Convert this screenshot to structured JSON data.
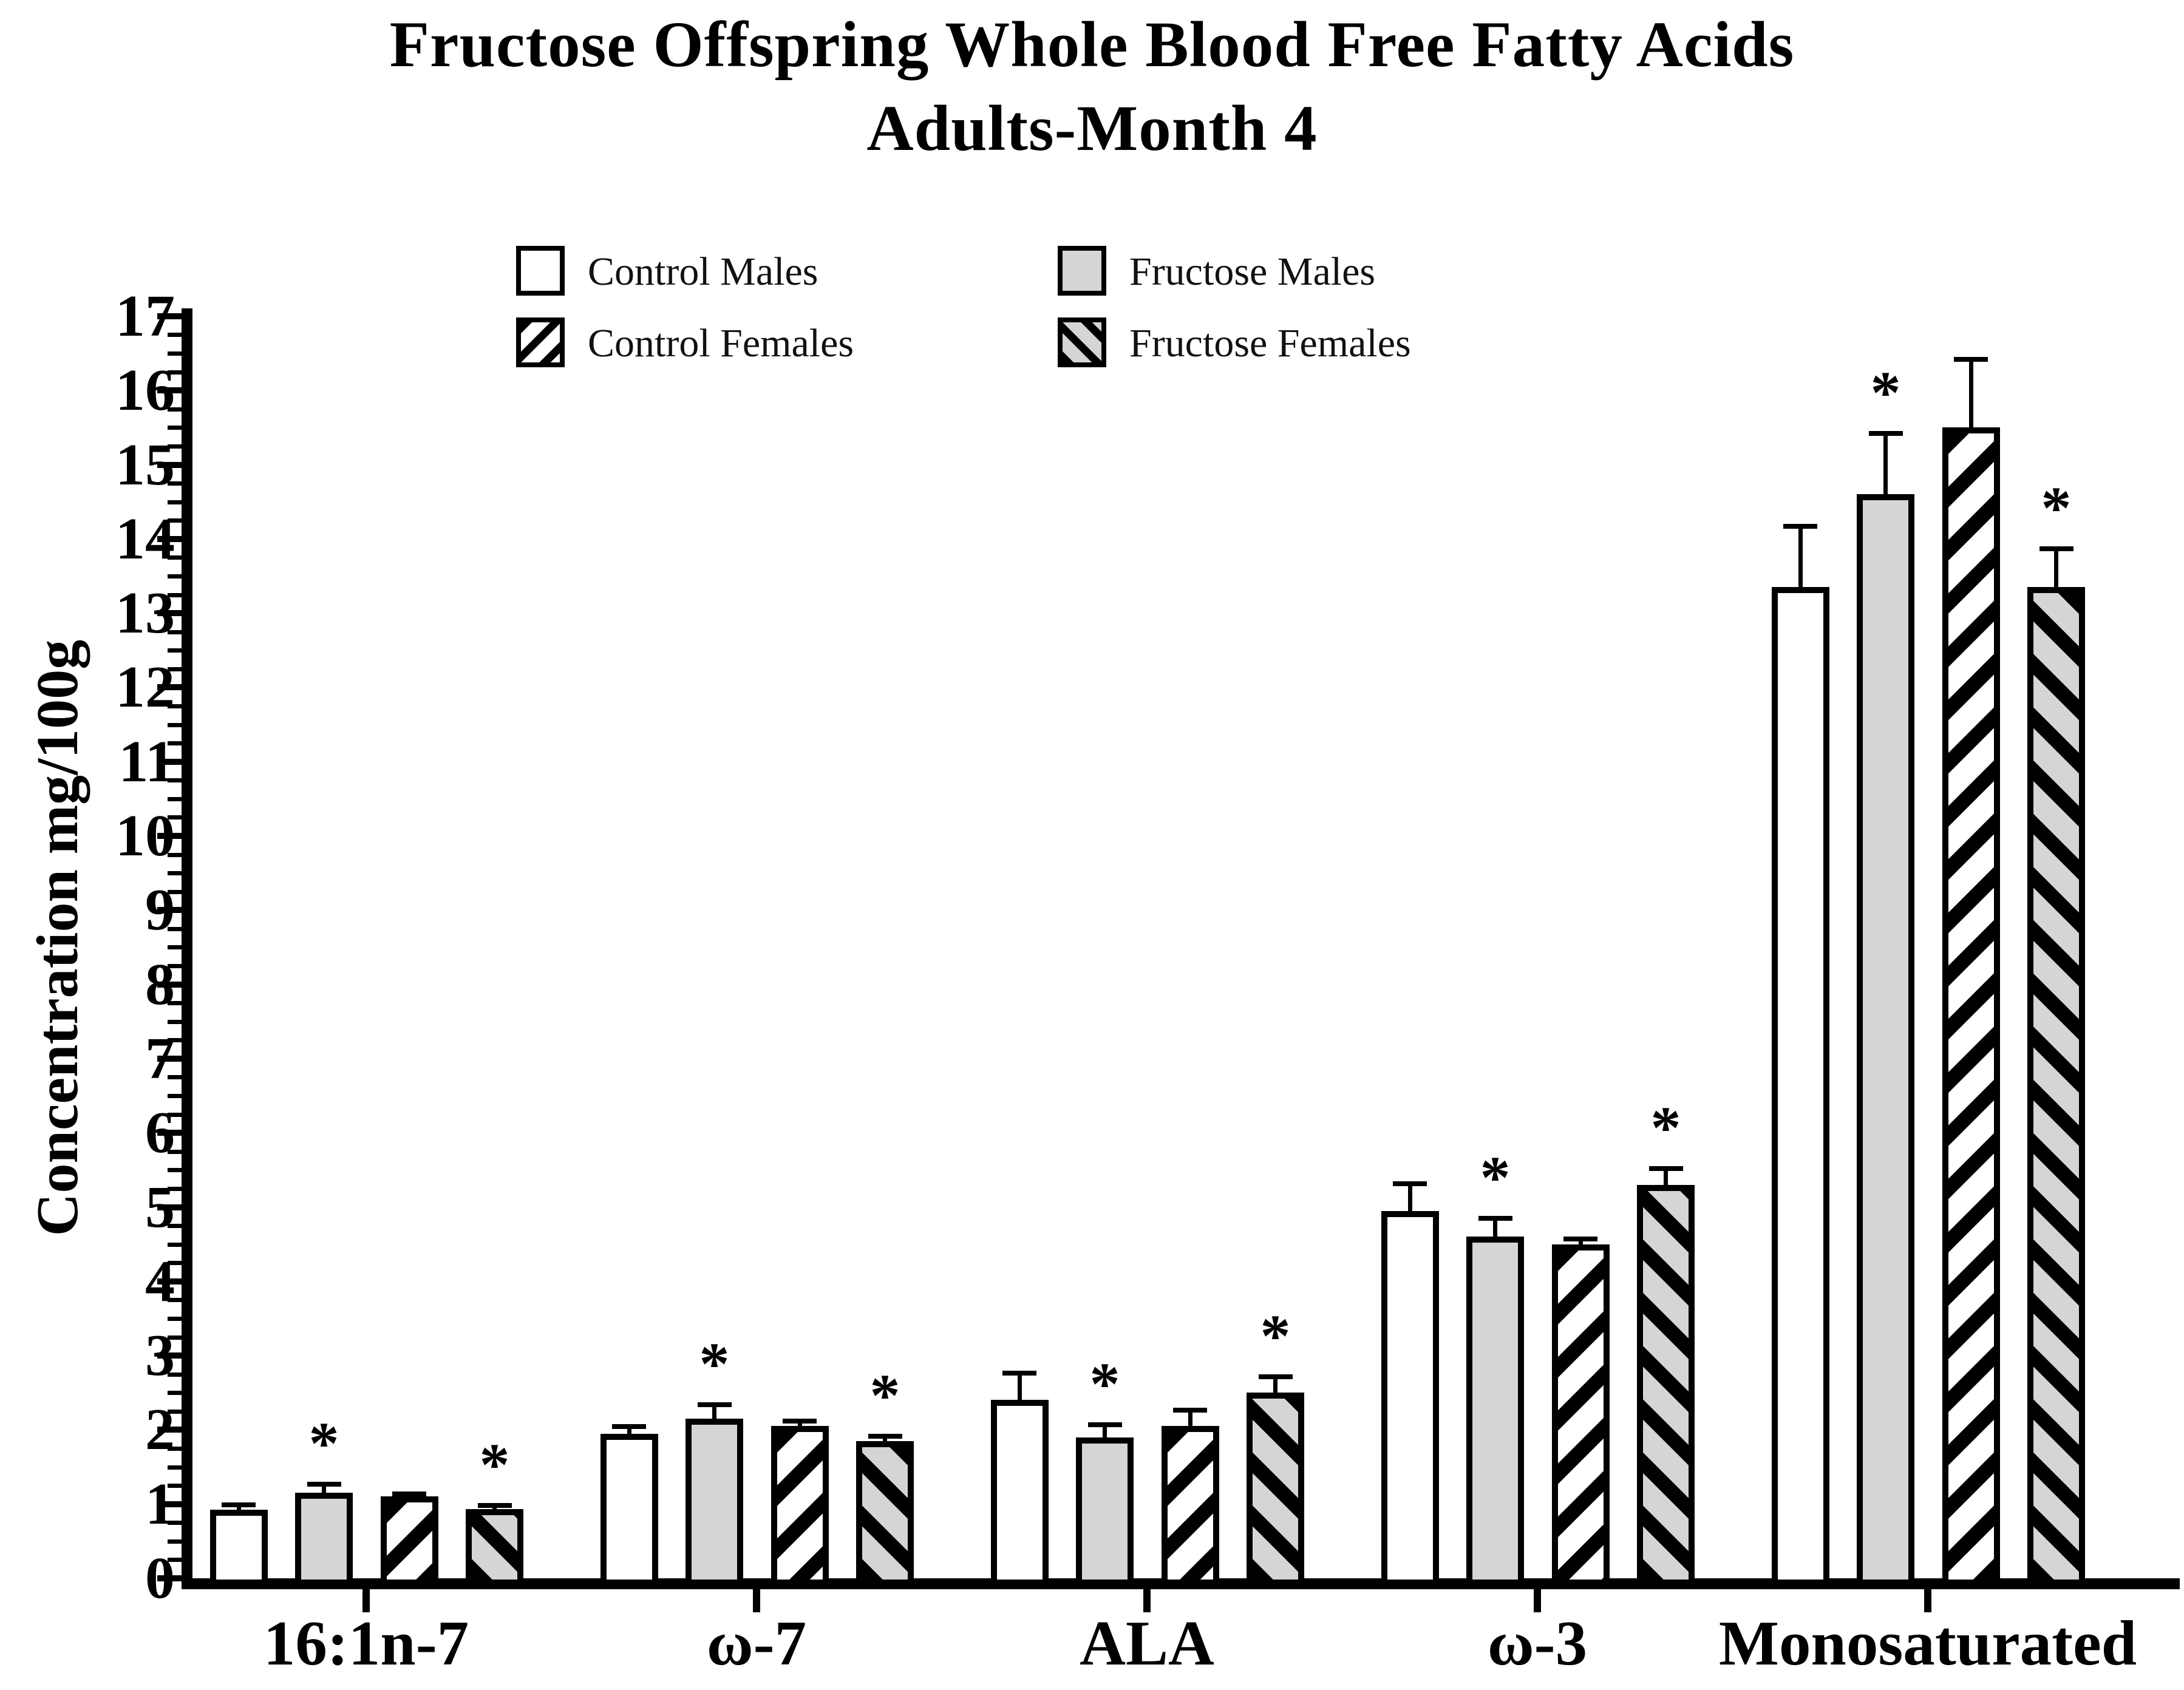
{
  "title": {
    "line1": "Fructose Offspring Whole Blood Free Fatty Acids",
    "line2": "Adults-Month 4"
  },
  "y_axis": {
    "label": "Concentration mg/100g",
    "min": 0,
    "max": 17,
    "major_step": 1,
    "minor_step": 0.25,
    "major_tick_labels": [
      "0",
      "1",
      "2",
      "3",
      "4",
      "5",
      "6",
      "7",
      "8",
      "9",
      "10",
      "11",
      "12",
      "13",
      "14",
      "15",
      "16",
      "17"
    ]
  },
  "x_axis": {
    "categories": [
      "16:1n-7",
      "ω-7",
      "ALA",
      "ω-3",
      "Monosaturated"
    ]
  },
  "legend": {
    "items": [
      {
        "label": "Control Males",
        "swatch": "white"
      },
      {
        "label": "Fructose Males",
        "swatch": "gray"
      },
      {
        "label": "Control Females",
        "swatch": "hatch-forward"
      },
      {
        "label": "Fructose Females",
        "swatch": "hatch-backward"
      }
    ]
  },
  "significance_marker": "*",
  "colors": {
    "bar_gray": "#d5d5d5",
    "bar_white": "#ffffff",
    "ink": "#000000",
    "background": "#ffffff"
  },
  "chart_data": {
    "type": "bar",
    "title": "Fructose Offspring Whole Blood Free Fatty Acids Adults-Month 4",
    "xlabel": "",
    "ylabel": "Concentration mg/100g",
    "ylim": [
      0,
      17
    ],
    "grid": false,
    "legend_position": "top",
    "error_bars": "upper SEM with caps",
    "categories": [
      "16:1n-7",
      "ω-7",
      "ALA",
      "ω-3",
      "Monosaturated"
    ],
    "series": [
      {
        "name": "Control Males",
        "swatch": "white",
        "values": [
          0.92,
          1.95,
          2.4,
          4.95,
          13.35
        ],
        "errors": [
          0.1,
          0.13,
          0.4,
          0.4,
          0.85
        ],
        "starred": [
          false,
          false,
          false,
          false,
          false
        ]
      },
      {
        "name": "Fructose Males",
        "swatch": "gray",
        "values": [
          1.15,
          2.15,
          1.9,
          4.6,
          14.6
        ],
        "errors": [
          0.15,
          0.22,
          0.2,
          0.28,
          0.85
        ],
        "starred": [
          true,
          true,
          true,
          true,
          true
        ]
      },
      {
        "name": "Control Females",
        "swatch": "hatch-forward",
        "values": [
          1.1,
          2.05,
          2.05,
          4.5,
          15.5
        ],
        "errors": [
          0.07,
          0.1,
          0.25,
          0.1,
          0.95
        ],
        "starred": [
          false,
          false,
          false,
          false,
          false
        ]
      },
      {
        "name": "Fructose Females",
        "swatch": "hatch-backward",
        "values": [
          0.93,
          1.85,
          2.5,
          5.3,
          13.35
        ],
        "errors": [
          0.08,
          0.1,
          0.25,
          0.25,
          0.55
        ],
        "starred": [
          true,
          true,
          true,
          true,
          true
        ]
      }
    ]
  }
}
